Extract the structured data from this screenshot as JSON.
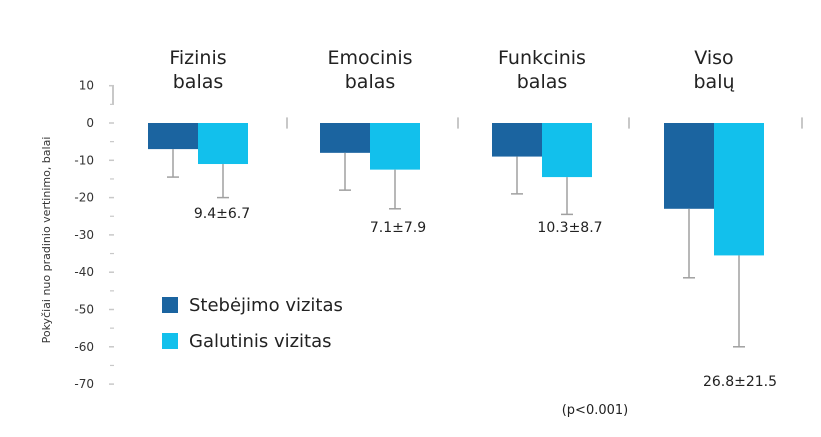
{
  "chart_data": {
    "type": "bar",
    "categories": [
      [
        "Fizinis",
        "balas"
      ],
      [
        "Emocinis",
        "balas"
      ],
      [
        "Funkcinis",
        "balas"
      ],
      [
        "Viso",
        "balų"
      ]
    ],
    "series": [
      {
        "name": "Stebėjimo vizitas",
        "values": [
          -7,
          -8,
          -9,
          -23
        ],
        "error_low": [
          -14.5,
          -18,
          -19,
          -41.5
        ]
      },
      {
        "name": "Galutinis vizitas",
        "values": [
          -11,
          -12.5,
          -14.5,
          -35.5
        ],
        "error_low": [
          -20,
          -23,
          -24.5,
          -60
        ]
      }
    ],
    "value_labels": [
      "9.4±6.7",
      "7.1±7.9",
      "10.3±8.7",
      "26.8±21.5"
    ],
    "ylabel": "Pokyčiai nuo pradinio vertinimo, balai",
    "yticks": [
      10,
      0,
      -10,
      -20,
      -30,
      -40,
      -50,
      -60,
      -70
    ],
    "ylim": [
      -70,
      10
    ],
    "note": "(p<0.001)",
    "legend_position": "middle-left",
    "colors": {
      "series1": "#1B64A0",
      "series2": "#12C0EC",
      "axis": "#c8c8c8",
      "error": "#a0a0a0"
    }
  }
}
